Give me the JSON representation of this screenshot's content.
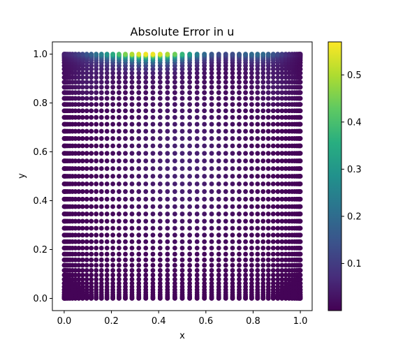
{
  "chart_data": {
    "type": "scatter",
    "title": "Absolute Error in u",
    "xlabel": "x",
    "ylabel": "y",
    "xlim": [
      -0.05,
      1.05
    ],
    "ylim": [
      -0.05,
      1.05
    ],
    "x_ticks": [
      "0.0",
      "0.2",
      "0.4",
      "0.6",
      "0.8",
      "1.0"
    ],
    "y_ticks": [
      "0.0",
      "0.2",
      "0.4",
      "0.6",
      "0.8",
      "1.0"
    ],
    "grid": false,
    "colormap": "viridis",
    "colorbar": {
      "range": [
        0.0,
        0.57
      ],
      "ticks": [
        "0.1",
        "0.2",
        "0.3",
        "0.4",
        "0.5"
      ]
    },
    "point_grid": {
      "x_range": [
        0.0,
        1.0
      ],
      "y_range": [
        0.0,
        1.0
      ],
      "nx": 51,
      "ny": 51,
      "spacing": "clustered toward edges"
    },
    "value_pattern": {
      "max_error_location": "top edge near x=0.3 to x=0.45",
      "max_error": 0.57,
      "description": "Error largest along the top boundary (lid), decaying rapidly downward; near-zero elsewhere"
    }
  }
}
